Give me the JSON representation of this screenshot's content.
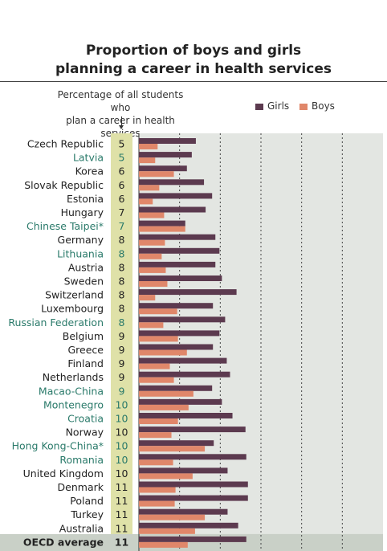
{
  "chart_data": {
    "type": "bar",
    "title": "Proportion of boys and girls planning a career in health services",
    "title_lines": [
      "Proportion of boys and girls",
      "planning a career in health services"
    ],
    "value_column_label_lines": [
      "Percentage of all students who",
      "plan a career in health services"
    ],
    "legend": [
      {
        "name": "Girls",
        "color": "#5c3a4f"
      },
      {
        "name": "Boys",
        "color": "#e0876a"
      }
    ],
    "categories": [
      "Czech Republic",
      "Latvia",
      "Korea",
      "Slovak Republic",
      "Estonia",
      "Hungary",
      "Chinese Taipei*",
      "Germany",
      "Lithuania",
      "Austria",
      "Sweden",
      "Switzerland",
      "Luxembourg",
      "Russian Federation",
      "Belgium",
      "Greece",
      "Finland",
      "Netherlands",
      "Macao-China",
      "Montenegro",
      "Croatia",
      "Norway",
      "Hong Kong-China*",
      "Romania",
      "United Kingdom",
      "Denmark",
      "Poland",
      "Turkey",
      "Australia",
      "OECD average"
    ],
    "highlighted": [
      false,
      true,
      false,
      false,
      false,
      false,
      true,
      false,
      true,
      false,
      false,
      false,
      false,
      true,
      false,
      false,
      false,
      false,
      true,
      true,
      true,
      false,
      true,
      true,
      false,
      false,
      false,
      false,
      false,
      false
    ],
    "column_values": [
      "5",
      "5",
      "6",
      "6",
      "6",
      "7",
      "7",
      "8",
      "8",
      "8",
      "8",
      "8",
      "8",
      "8",
      "9",
      "9",
      "9",
      "9",
      "9",
      "10",
      "10",
      "10",
      "10",
      "10",
      "10",
      "11",
      "11",
      "11",
      "11",
      "11"
    ],
    "series": [
      {
        "name": "Girls",
        "values": [
          7.0,
          6.5,
          5.9,
          8.0,
          9.0,
          8.2,
          5.7,
          9.4,
          9.9,
          9.4,
          10.2,
          12.0,
          9.1,
          10.6,
          9.9,
          9.1,
          10.8,
          11.2,
          9.0,
          10.2,
          11.5,
          13.1,
          9.2,
          13.2,
          10.9,
          13.4,
          13.4,
          10.9,
          12.2,
          13.2
        ]
      },
      {
        "name": "Boys",
        "values": [
          2.3,
          2.0,
          4.3,
          2.5,
          1.7,
          3.1,
          5.7,
          3.2,
          2.8,
          3.3,
          3.5,
          2.0,
          4.7,
          3.0,
          4.8,
          5.9,
          3.8,
          4.3,
          6.7,
          6.1,
          4.8,
          4.0,
          8.1,
          4.2,
          6.6,
          4.5,
          4.4,
          8.1,
          6.9,
          6.0
        ]
      }
    ],
    "xlim": [
      0,
      30
    ],
    "grid": true,
    "legend_position": "top-right"
  },
  "colors": {
    "girls": "#5c3a4f",
    "boys": "#e0876a",
    "column_bg": "#dfe1a8",
    "plot_bg": "#e3e6e2",
    "highlight_text": "#2a7a6a",
    "normal_text": "#222222"
  }
}
